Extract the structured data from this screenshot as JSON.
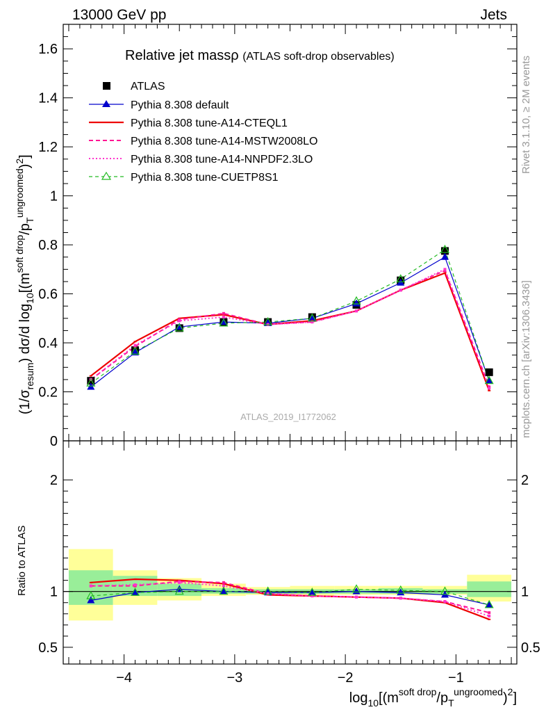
{
  "header": {
    "left": "13000 GeV pp",
    "right": "Jets"
  },
  "side_labels": {
    "rivet": "Rivet 3.1.10, ≥ 2M events",
    "mcplots": "mcplots.cern.ch [arXiv:1306.3436]"
  },
  "watermark": "ATLAS_2019_I1772062",
  "chart_data": [
    {
      "type": "line",
      "panel": "main",
      "title": "Relative jet massρ",
      "subtitle": "(ATLAS soft-drop observables)",
      "ylabel": "(1/σresum) dσ/d log10[(m soft drop/pT ungroomed)²]",
      "ylabel_parts": {
        "a": "(1/σ",
        "b": "resum",
        "c": ") dσ/d log",
        "d": "10",
        "e": "[(m",
        "f": "soft drop",
        "g": "/p",
        "h": "T",
        "i": "ungroomed",
        "j": ")",
        "k": "2",
        "l": "]"
      },
      "xlim": [
        -4.55,
        -0.45
      ],
      "ylim": [
        0,
        1.7
      ],
      "yticks": [
        0,
        0.2,
        0.4,
        0.6,
        0.8,
        1,
        1.2,
        1.4,
        1.6
      ],
      "ytick_labels": [
        "0",
        "0.2",
        "0.4",
        "0.6",
        "0.8",
        "1",
        "1.2",
        "1.4",
        "1.6"
      ],
      "legend_position": "top-left",
      "data": {
        "name": "ATLAS",
        "x": [
          -4.3,
          -3.9,
          -3.5,
          -3.1,
          -2.7,
          -2.3,
          -1.9,
          -1.5,
          -1.1,
          -0.7
        ],
        "y": [
          0.245,
          0.37,
          0.46,
          0.485,
          0.485,
          0.505,
          0.555,
          0.655,
          0.775,
          0.28
        ],
        "bin_edges": [
          -4.5,
          -4.1,
          -3.7,
          -3.3,
          -2.9,
          -2.5,
          -2.1,
          -1.7,
          -1.3,
          -0.9,
          -0.5
        ]
      },
      "series": [
        {
          "name": "Pythia 8.308 default",
          "color": "#0000cc",
          "marker": "triangle",
          "style": "solid",
          "y": [
            0.22,
            0.36,
            0.465,
            0.485,
            0.48,
            0.5,
            0.56,
            0.645,
            0.75,
            0.245
          ]
        },
        {
          "name": "Pythia 8.308 tune-A14-CTEQL1",
          "color": "#ee0000",
          "marker": "none",
          "style": "solid-thick",
          "y": [
            0.265,
            0.405,
            0.5,
            0.515,
            0.475,
            0.49,
            0.53,
            0.615,
            0.685,
            0.205
          ]
        },
        {
          "name": "Pythia 8.308 tune-A14-MSTW2008LO",
          "color": "#ff1493",
          "marker": "dot",
          "style": "dashed",
          "y": [
            0.25,
            0.385,
            0.495,
            0.52,
            0.475,
            0.485,
            0.53,
            0.615,
            0.695,
            0.22
          ]
        },
        {
          "name": "Pythia 8.308 tune-A14-NNPDF2.3LO",
          "color": "#ff33cc",
          "marker": "dot",
          "style": "dotted",
          "y": [
            0.25,
            0.39,
            0.49,
            0.505,
            0.475,
            0.485,
            0.53,
            0.615,
            0.7,
            0.215
          ]
        },
        {
          "name": "Pythia 8.308 tune-CUETP8S1",
          "color": "#22bb22",
          "marker": "open-triangle",
          "style": "dashed",
          "y": [
            0.235,
            0.365,
            0.46,
            0.48,
            0.485,
            0.5,
            0.57,
            0.66,
            0.78,
            0.245
          ]
        }
      ]
    },
    {
      "type": "line",
      "panel": "ratio",
      "ylabel": "Ratio to ATLAS",
      "xlabel": "log10[(m soft drop/pT ungroomed)²]",
      "xlabel_parts": {
        "a": "log",
        "b": "10",
        "c": "[(m",
        "d": "soft drop",
        "e": "/p",
        "f": "T",
        "g": "ungroomed",
        "h": ")",
        "i": "2",
        "j": "]"
      },
      "xlim": [
        -4.55,
        -0.45
      ],
      "ylim": [
        0.35,
        2.35
      ],
      "xticks": [
        -4,
        -3,
        -2,
        -1
      ],
      "xtick_labels": [
        "−4",
        "−3",
        "−2",
        "−1"
      ],
      "yticks": [
        0.5,
        1,
        2
      ],
      "ytick_labels": [
        "0.5",
        "1",
        "2"
      ],
      "bands": {
        "green_lo": [
          0.88,
          0.96,
          0.96,
          0.98,
          0.98,
          0.98,
          0.98,
          0.98,
          0.98,
          0.95
        ],
        "green_hi": [
          1.19,
          1.14,
          1.07,
          1.03,
          1.02,
          1.02,
          1.02,
          1.03,
          1.02,
          1.09
        ],
        "yellow_lo": [
          0.74,
          0.88,
          0.92,
          0.96,
          0.97,
          0.96,
          0.97,
          0.97,
          0.97,
          0.91
        ],
        "yellow_hi": [
          1.38,
          1.19,
          1.12,
          1.07,
          1.04,
          1.05,
          1.05,
          1.05,
          1.05,
          1.15
        ]
      },
      "series": [
        {
          "name": "Pythia 8.308 default",
          "y": [
            0.92,
            0.99,
            1.02,
            1.0,
            0.99,
            0.99,
            1.0,
            0.99,
            0.97,
            0.88
          ]
        },
        {
          "name": "Pythia 8.308 tune-A14-CTEQL1",
          "y": [
            1.08,
            1.11,
            1.1,
            1.07,
            0.97,
            0.96,
            0.95,
            0.94,
            0.9,
            0.75
          ]
        },
        {
          "name": "Pythia 8.308 tune-A14-MSTW2008LO",
          "y": [
            1.05,
            1.05,
            1.09,
            1.08,
            0.98,
            0.96,
            0.95,
            0.94,
            0.91,
            0.81
          ]
        },
        {
          "name": "Pythia 8.308 tune-A14-NNPDF2.3LO",
          "y": [
            1.05,
            1.06,
            1.08,
            1.05,
            0.98,
            0.96,
            0.95,
            0.94,
            0.91,
            0.78
          ]
        },
        {
          "name": "Pythia 8.308 tune-CUETP8S1",
          "y": [
            0.96,
            0.99,
            1.0,
            1.0,
            1.0,
            0.99,
            1.02,
            1.01,
            1.0,
            0.88
          ]
        }
      ]
    }
  ]
}
